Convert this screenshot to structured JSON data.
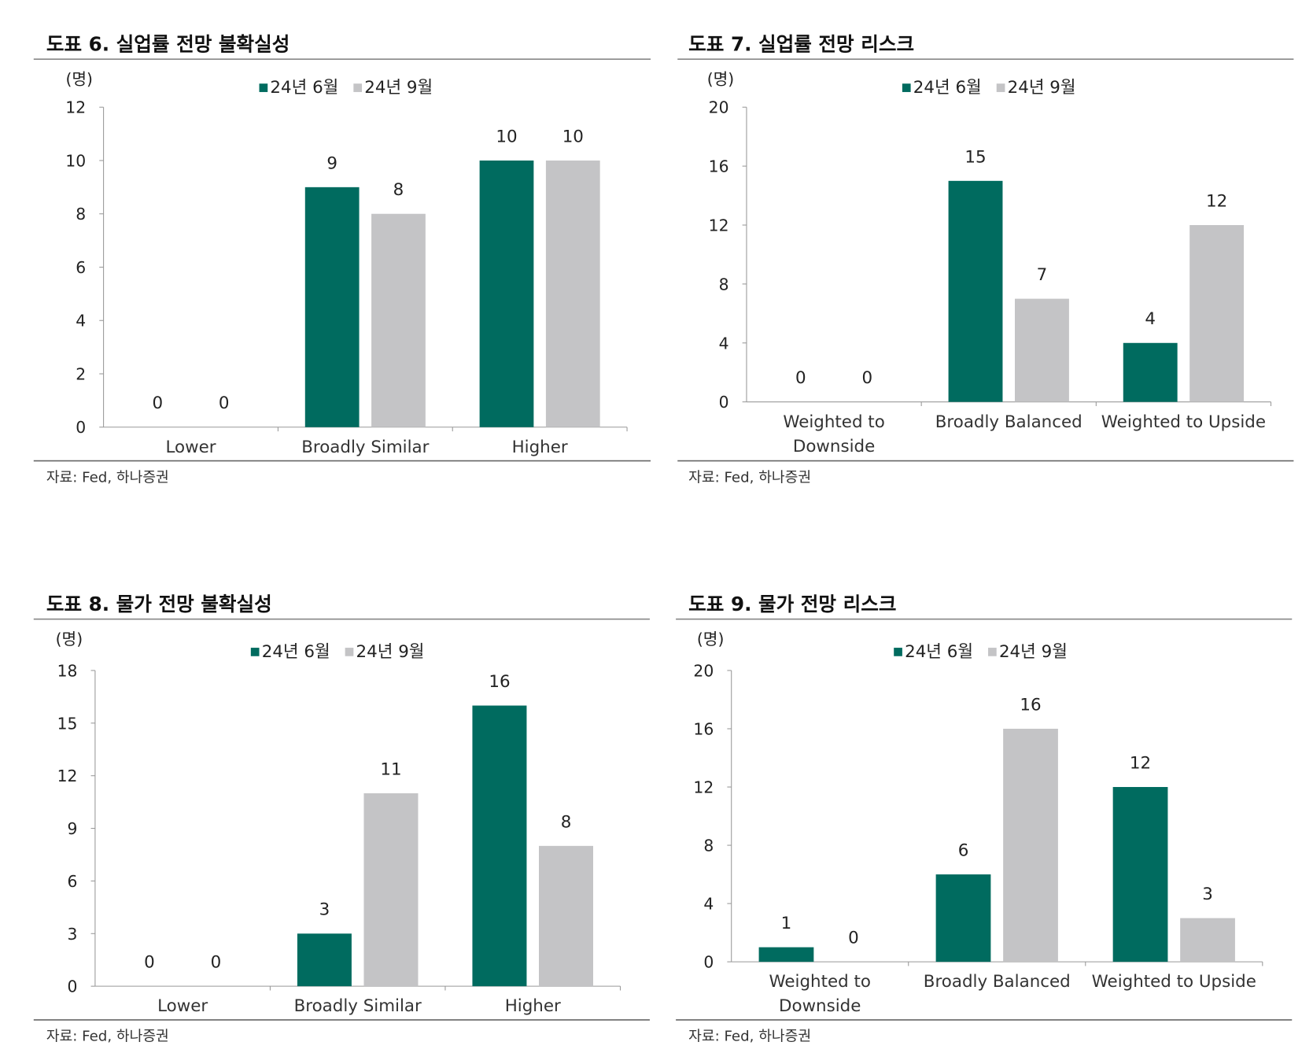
{
  "colors": {
    "jun": "#006b5f",
    "sep": "#c4c4c6"
  },
  "legend": [
    "24년 6월",
    "24년 9월"
  ],
  "unit": "(명)",
  "source": "자료: Fed, 하나증권",
  "chart_data": [
    {
      "type": "bar",
      "title": "도표 6. 실업률 전망 불확실성",
      "ylabel": "(명)",
      "categories": [
        "Lower",
        "Broadly Similar",
        "Higher"
      ],
      "series": [
        {
          "name": "24년 6월",
          "values": [
            0,
            9,
            10
          ]
        },
        {
          "name": "24년 9월",
          "values": [
            0,
            8,
            10
          ]
        }
      ],
      "ylim": [
        0,
        12
      ],
      "yticks": [
        0,
        2,
        4,
        6,
        8,
        10,
        12
      ],
      "legend": "top-center"
    },
    {
      "type": "bar",
      "title": "도표 7. 실업률 전망 리스크",
      "ylabel": "(명)",
      "categories": [
        [
          "Weighted to",
          "Downside"
        ],
        [
          "Broadly Balanced"
        ],
        [
          "Weighted to Upside"
        ]
      ],
      "series": [
        {
          "name": "24년 6월",
          "values": [
            0,
            15,
            4
          ]
        },
        {
          "name": "24년 9월",
          "values": [
            0,
            7,
            12
          ]
        }
      ],
      "ylim": [
        0,
        20
      ],
      "yticks": [
        0,
        4,
        8,
        12,
        16,
        20
      ],
      "legend": "top-center"
    },
    {
      "type": "bar",
      "title": "도표 8. 물가 전망 불확실성",
      "ylabel": "(명)",
      "categories": [
        "Lower",
        "Broadly Similar",
        "Higher"
      ],
      "series": [
        {
          "name": "24년 6월",
          "values": [
            0,
            3,
            16
          ]
        },
        {
          "name": "24년 9월",
          "values": [
            0,
            11,
            8
          ]
        }
      ],
      "ylim": [
        0,
        18
      ],
      "yticks": [
        0,
        3,
        6,
        9,
        12,
        15,
        18
      ],
      "legend": "top-center"
    },
    {
      "type": "bar",
      "title": "도표 9. 물가 전망 리스크",
      "ylabel": "(명)",
      "categories": [
        [
          "Weighted to",
          "Downside"
        ],
        [
          "Broadly Balanced"
        ],
        [
          "Weighted to Upside"
        ]
      ],
      "series": [
        {
          "name": "24년 6월",
          "values": [
            1,
            6,
            12
          ]
        },
        {
          "name": "24년 9월",
          "values": [
            0,
            16,
            3
          ]
        }
      ],
      "ylim": [
        0,
        20
      ],
      "yticks": [
        0,
        4,
        8,
        12,
        16,
        20
      ],
      "legend": "top-center"
    }
  ]
}
